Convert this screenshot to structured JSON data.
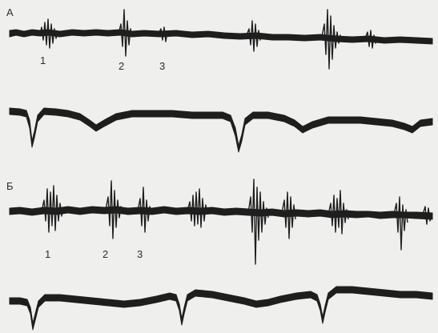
{
  "panels": [
    {
      "label": "А",
      "markers": [
        "1",
        "2",
        "3"
      ]
    },
    {
      "label": "Б",
      "markers": [
        "1",
        "2",
        "3"
      ]
    }
  ],
  "colors": {
    "background": "#efefed",
    "trace": "#1e1e1e",
    "text": "#2e2e2e"
  }
}
